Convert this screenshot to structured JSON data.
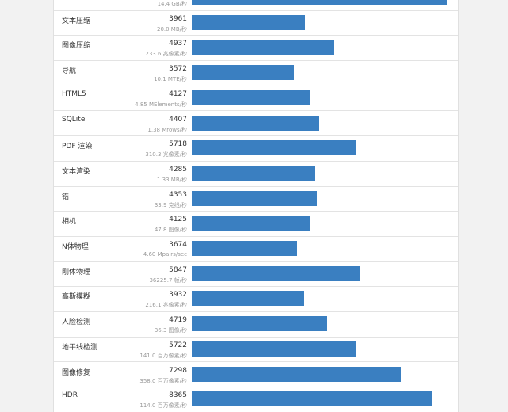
{
  "chart_data": {
    "type": "bar",
    "orientation": "horizontal",
    "bar_color": "#3a7fc1",
    "xlim": [
      0,
      9000
    ],
    "categories": [
      "",
      "文本压缩",
      "图像压缩",
      "导航",
      "HTML5",
      "SQLite",
      "PDF 渲染",
      "文本渲染",
      "锆",
      "相机",
      "N体物理",
      "刚体物理",
      "高斯模糊",
      "人脸检测",
      "地平线检测",
      "图像修复",
      "HDR"
    ],
    "values": [
      null,
      3961,
      4937,
      3572,
      4127,
      4407,
      5718,
      4285,
      4353,
      4125,
      3674,
      5847,
      3932,
      4719,
      5722,
      7298,
      8365
    ],
    "bar_levels": [
      8900,
      3961,
      4937,
      3572,
      4127,
      4407,
      5718,
      4285,
      4353,
      4125,
      3674,
      5847,
      3932,
      4719,
      5722,
      7298,
      8365
    ],
    "units": [
      "14.4 GB/秒",
      "20.0 MB/秒",
      "233.6 兆像素/秒",
      "10.1 MTE/秒",
      "4.85 MElements/秒",
      "1.38 Mrows/秒",
      "310.3 兆像素/秒",
      "1.33 MB/秒",
      "33.9 克线/秒",
      "47.8 图像/秒",
      "4.60 Mpairs/sec",
      "36225.7 帧/秒",
      "216.1 兆像素/秒",
      "36.3 图像/秒",
      "141.0 百万像素/秒",
      "358.0 百万像素/秒",
      "114.0 百万像素/秒"
    ]
  }
}
